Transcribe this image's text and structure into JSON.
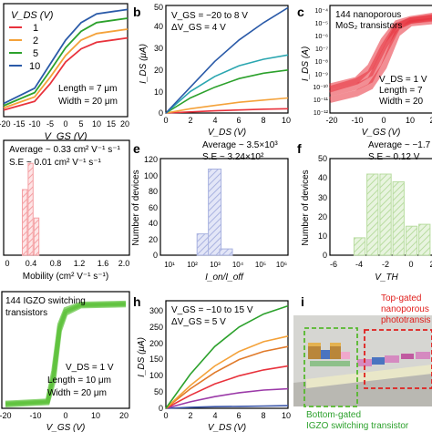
{
  "panels": {
    "a": {
      "label": "",
      "legend_title": "V_DS (V)",
      "legend": [
        "1",
        "2",
        "5",
        "10"
      ],
      "params": [
        "Length = 7 μm",
        "Width = 20 μm"
      ],
      "xlabel": "V_GS (V)",
      "xticks": [
        "-20",
        "-15",
        "-10",
        "-5",
        "0",
        "5",
        "10",
        "15",
        "20"
      ]
    },
    "b": {
      "label": "b",
      "annot": [
        "V_GS = −20 to 8 V",
        "ΔV_GS = 4 V"
      ],
      "xlabel": "V_DS (V)",
      "ylabel": "I_DS (μA)",
      "xticks": [
        "0",
        "2",
        "4",
        "6",
        "8",
        "10"
      ],
      "yticks": [
        "0",
        "10",
        "20",
        "30",
        "40",
        "50"
      ]
    },
    "c": {
      "label": "c",
      "annot": [
        "144 nanoporous",
        "MoS₂ transistors"
      ],
      "params": [
        "V_DS = 1 V",
        "Length = 7",
        "Width = 20"
      ],
      "xlabel": "V_GS (V)",
      "ylabel": "I_DS (A)",
      "xticks": [
        "-20",
        "-10",
        "0",
        "10",
        "2"
      ],
      "yticks": [
        "10⁻⁴",
        "10⁻⁵",
        "10⁻⁶",
        "10⁻⁷",
        "10⁻⁸",
        "10⁻⁹",
        "10⁻¹⁰",
        "10⁻¹¹",
        "10⁻¹²"
      ]
    },
    "d": {
      "label": "",
      "stats": [
        "Average ~ 0.33 cm² V⁻¹ s⁻¹",
        "S.E ~ 0.01 cm² V⁻¹ s⁻¹"
      ],
      "xlabel": "Mobility (cm² V⁻¹ s⁻¹)",
      "xticks": [
        "0",
        "0.4",
        "0.8",
        "1.2",
        "1.6",
        "2.0"
      ]
    },
    "e": {
      "label": "e",
      "stats": [
        "Average ~ 3.5×10³",
        "S.E ~ 3.24×10²"
      ],
      "xlabel": "I_on/I_off",
      "ylabel": "Number of devices",
      "xticks": [
        "10¹",
        "10²",
        "10³",
        "10⁴",
        "10⁵",
        "10⁶"
      ],
      "yticks": [
        "0",
        "20",
        "40",
        "60",
        "80",
        "100",
        "120"
      ]
    },
    "f": {
      "label": "f",
      "stats": [
        "Average ~ −1.7",
        "S.E ~ 0.12 V"
      ],
      "xlabel": "V_TH",
      "ylabel": "Number of devices",
      "xticks": [
        "-6",
        "-4",
        "-2",
        "0",
        "2"
      ],
      "yticks": [
        "0",
        "10",
        "20",
        "30",
        "40",
        "50"
      ]
    },
    "g": {
      "label": "",
      "annot": [
        "144 IGZO switching",
        "transistors"
      ],
      "params": [
        "V_DS = 1 V",
        "Length = 10 μm",
        "Width = 20 μm"
      ],
      "xlabel": "V_GS (V)",
      "xticks": [
        "-20",
        "-10",
        "0",
        "10",
        "20"
      ]
    },
    "h": {
      "label": "h",
      "annot": [
        "V_GS = −10 to 15 V",
        "ΔV_GS = 5 V"
      ],
      "xlabel": "V_DS (V)",
      "ylabel": "I_DS (μA)",
      "xticks": [
        "0",
        "2",
        "4",
        "6",
        "8",
        "10"
      ],
      "yticks": [
        "0",
        "50",
        "100",
        "150",
        "200",
        "250",
        "300"
      ]
    },
    "i": {
      "label": "i",
      "callout_top": [
        "Top-gated",
        "nanoporous",
        "phototransis"
      ],
      "callout_bottom": [
        "Bottom-gated",
        "IGZO switching transistor"
      ]
    }
  },
  "colors": {
    "red": "#e8323c",
    "orange": "#f4a23a",
    "green": "#2ca12c",
    "blue": "#2a5aa8",
    "hist_pink": "#f4a0a4",
    "hist_blue": "#a9b2e0",
    "hist_green": "#b8dca0",
    "dashed_green": "#55b82d",
    "dashed_red": "#e0201e"
  },
  "chart_data": [
    {
      "panel": "a",
      "type": "line",
      "xlim": [
        -20,
        20
      ],
      "series": [
        {
          "name": "1",
          "x": [
            -20,
            -10,
            -5,
            0,
            5,
            10,
            20
          ],
          "y": [
            0.06,
            0.14,
            0.3,
            0.5,
            0.62,
            0.68,
            0.72
          ]
        },
        {
          "name": "2",
          "x": [
            -20,
            -10,
            -5,
            0,
            5,
            10,
            20
          ],
          "y": [
            0.08,
            0.18,
            0.36,
            0.56,
            0.7,
            0.76,
            0.8
          ]
        },
        {
          "name": "5",
          "x": [
            -20,
            -10,
            -5,
            0,
            5,
            10,
            20
          ],
          "y": [
            0.1,
            0.22,
            0.42,
            0.63,
            0.78,
            0.86,
            0.9
          ]
        },
        {
          "name": "10",
          "x": [
            -20,
            -10,
            -5,
            0,
            5,
            10,
            20
          ],
          "y": [
            0.12,
            0.26,
            0.48,
            0.7,
            0.86,
            0.94,
            0.98
          ]
        }
      ]
    },
    {
      "panel": "b",
      "type": "line",
      "xlim": [
        0,
        10
      ],
      "ylim": [
        0,
        50
      ],
      "series": [
        {
          "x": [
            0,
            2,
            4,
            6,
            8,
            10
          ],
          "y": [
            0,
            0.5,
            1,
            1.4,
            1.8,
            2
          ]
        },
        {
          "x": [
            0,
            2,
            4,
            6,
            8,
            10
          ],
          "y": [
            0,
            2,
            3.5,
            5,
            6,
            7
          ]
        },
        {
          "x": [
            0,
            2,
            4,
            6,
            8,
            10
          ],
          "y": [
            0,
            7,
            12,
            16,
            18.5,
            20
          ]
        },
        {
          "x": [
            0,
            2,
            4,
            6,
            8,
            10
          ],
          "y": [
            0,
            10,
            17,
            22,
            25,
            27
          ]
        },
        {
          "x": [
            0,
            2,
            4,
            6,
            8,
            10
          ],
          "y": [
            0,
            12,
            24,
            34,
            42,
            49
          ]
        }
      ]
    },
    {
      "panel": "c",
      "type": "line",
      "xlim": [
        -20,
        20
      ],
      "ylim": [
        -12,
        -4
      ],
      "series": [
        {
          "x": [
            -20,
            -10,
            -5,
            0,
            5,
            10,
            20
          ],
          "y": [
            -10.5,
            -10,
            -9.5,
            -7.5,
            -5.5,
            -5,
            -4.8
          ]
        },
        {
          "x": [
            -20,
            -10,
            -5,
            0,
            5,
            10,
            20
          ],
          "y": [
            -10,
            -9.5,
            -8.5,
            -6.5,
            -5.2,
            -4.9,
            -4.6
          ]
        },
        {
          "x": [
            -20,
            -10,
            -5,
            0,
            5,
            10,
            20
          ],
          "y": [
            -11,
            -10.5,
            -10,
            -8.5,
            -6,
            -5.2,
            -5
          ]
        },
        {
          "x": [
            -20,
            -10,
            -5,
            0,
            5,
            10,
            20
          ],
          "y": [
            -10.2,
            -9.6,
            -9,
            -7,
            -5.4,
            -5,
            -4.7
          ]
        }
      ]
    },
    {
      "panel": "d",
      "type": "bar",
      "xlim": [
        0,
        2.0
      ],
      "x": [
        0.3,
        0.4,
        0.5
      ],
      "values": [
        30,
        42,
        17
      ]
    },
    {
      "panel": "e",
      "type": "bar",
      "xlim": [
        1,
        6
      ],
      "ylim": [
        0,
        120
      ],
      "x": [
        2.5,
        3,
        3.5
      ],
      "values": [
        27,
        109,
        8
      ]
    },
    {
      "panel": "f",
      "type": "bar",
      "xlim": [
        -6,
        2
      ],
      "ylim": [
        0,
        50
      ],
      "x": [
        -4,
        -3,
        -2,
        -1,
        0,
        1
      ],
      "values": [
        9,
        42,
        42,
        38,
        15,
        16
      ]
    },
    {
      "panel": "g",
      "type": "line",
      "xlim": [
        -20,
        20
      ],
      "series": [
        {
          "x": [
            -20,
            -6,
            -4,
            -2,
            0,
            5,
            20
          ],
          "y": [
            0.04,
            0.06,
            0.3,
            0.75,
            0.9,
            0.96,
            0.97
          ]
        },
        {
          "x": [
            -20,
            -6,
            -4,
            -2,
            0,
            5,
            20
          ],
          "y": [
            0.03,
            0.05,
            0.25,
            0.72,
            0.88,
            0.95,
            0.96
          ]
        },
        {
          "x": [
            -20,
            -6,
            -4,
            -2,
            0,
            5,
            20
          ],
          "y": [
            0.05,
            0.07,
            0.35,
            0.78,
            0.92,
            0.97,
            0.98
          ]
        }
      ]
    },
    {
      "panel": "h",
      "type": "line",
      "xlim": [
        0,
        10
      ],
      "ylim": [
        0,
        300
      ],
      "series": [
        {
          "x": [
            0,
            2,
            4,
            6,
            8,
            10
          ],
          "y": [
            0,
            3,
            5,
            6,
            7,
            8
          ]
        },
        {
          "x": [
            0,
            2,
            4,
            6,
            8,
            10
          ],
          "y": [
            0,
            20,
            36,
            48,
            56,
            60
          ]
        },
        {
          "x": [
            0,
            2,
            4,
            6,
            8,
            10
          ],
          "y": [
            0,
            40,
            75,
            100,
            118,
            130
          ]
        },
        {
          "x": [
            0,
            2,
            4,
            6,
            8,
            10
          ],
          "y": [
            0,
            60,
            110,
            150,
            175,
            190
          ]
        },
        {
          "x": [
            0,
            2,
            4,
            6,
            8,
            10
          ],
          "y": [
            0,
            70,
            130,
            175,
            205,
            222
          ]
        },
        {
          "x": [
            0,
            2,
            4,
            6,
            8,
            10
          ],
          "y": [
            0,
            105,
            190,
            250,
            290,
            315
          ]
        }
      ]
    }
  ]
}
